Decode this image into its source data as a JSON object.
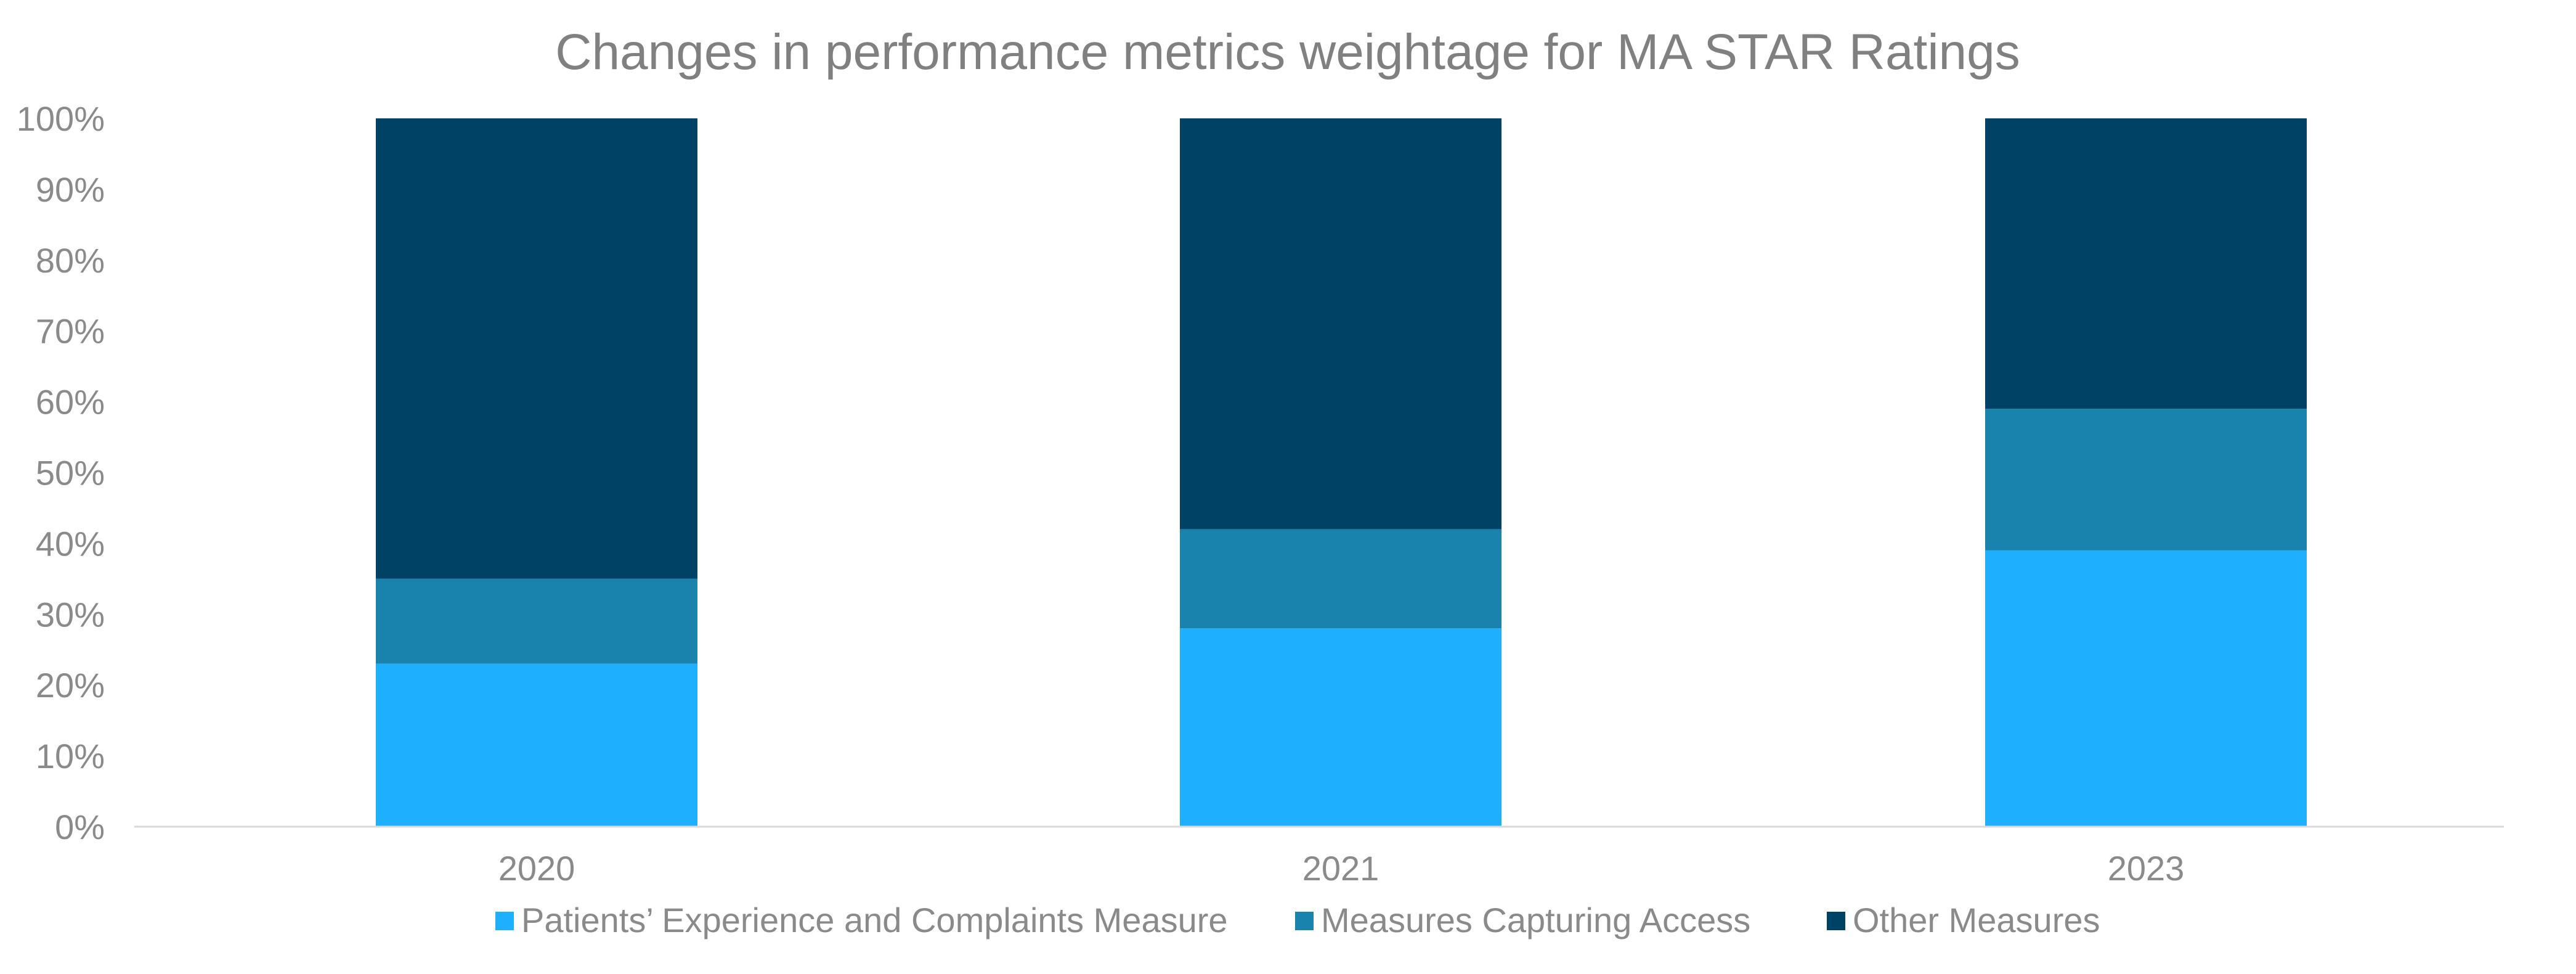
{
  "chart_data": {
    "type": "bar",
    "stacked": true,
    "percent_stacked": true,
    "title": "Changes in performance metrics weightage for MA STAR Ratings",
    "xlabel": "",
    "ylabel": "",
    "categories": [
      "2020",
      "2021",
      "2023"
    ],
    "series": [
      {
        "name": "Patients’ Experience and Complaints Measure",
        "color": "#1FAFFF",
        "values": [
          23,
          28,
          39
        ]
      },
      {
        "name": "Measures Capturing Access",
        "color": "#1982AD",
        "values": [
          12,
          14,
          20
        ]
      },
      {
        "name": "Other Measures",
        "color": "#004266",
        "values": [
          65,
          58,
          41
        ]
      }
    ],
    "ylim": [
      0,
      100
    ],
    "yticks": [
      0,
      10,
      20,
      30,
      40,
      50,
      60,
      70,
      80,
      90,
      100
    ],
    "ytick_labels": [
      "0%",
      "10%",
      "20%",
      "30%",
      "40%",
      "50%",
      "60%",
      "70%",
      "80%",
      "90%",
      "100%"
    ],
    "grid": false,
    "legend": "bottom-center"
  }
}
